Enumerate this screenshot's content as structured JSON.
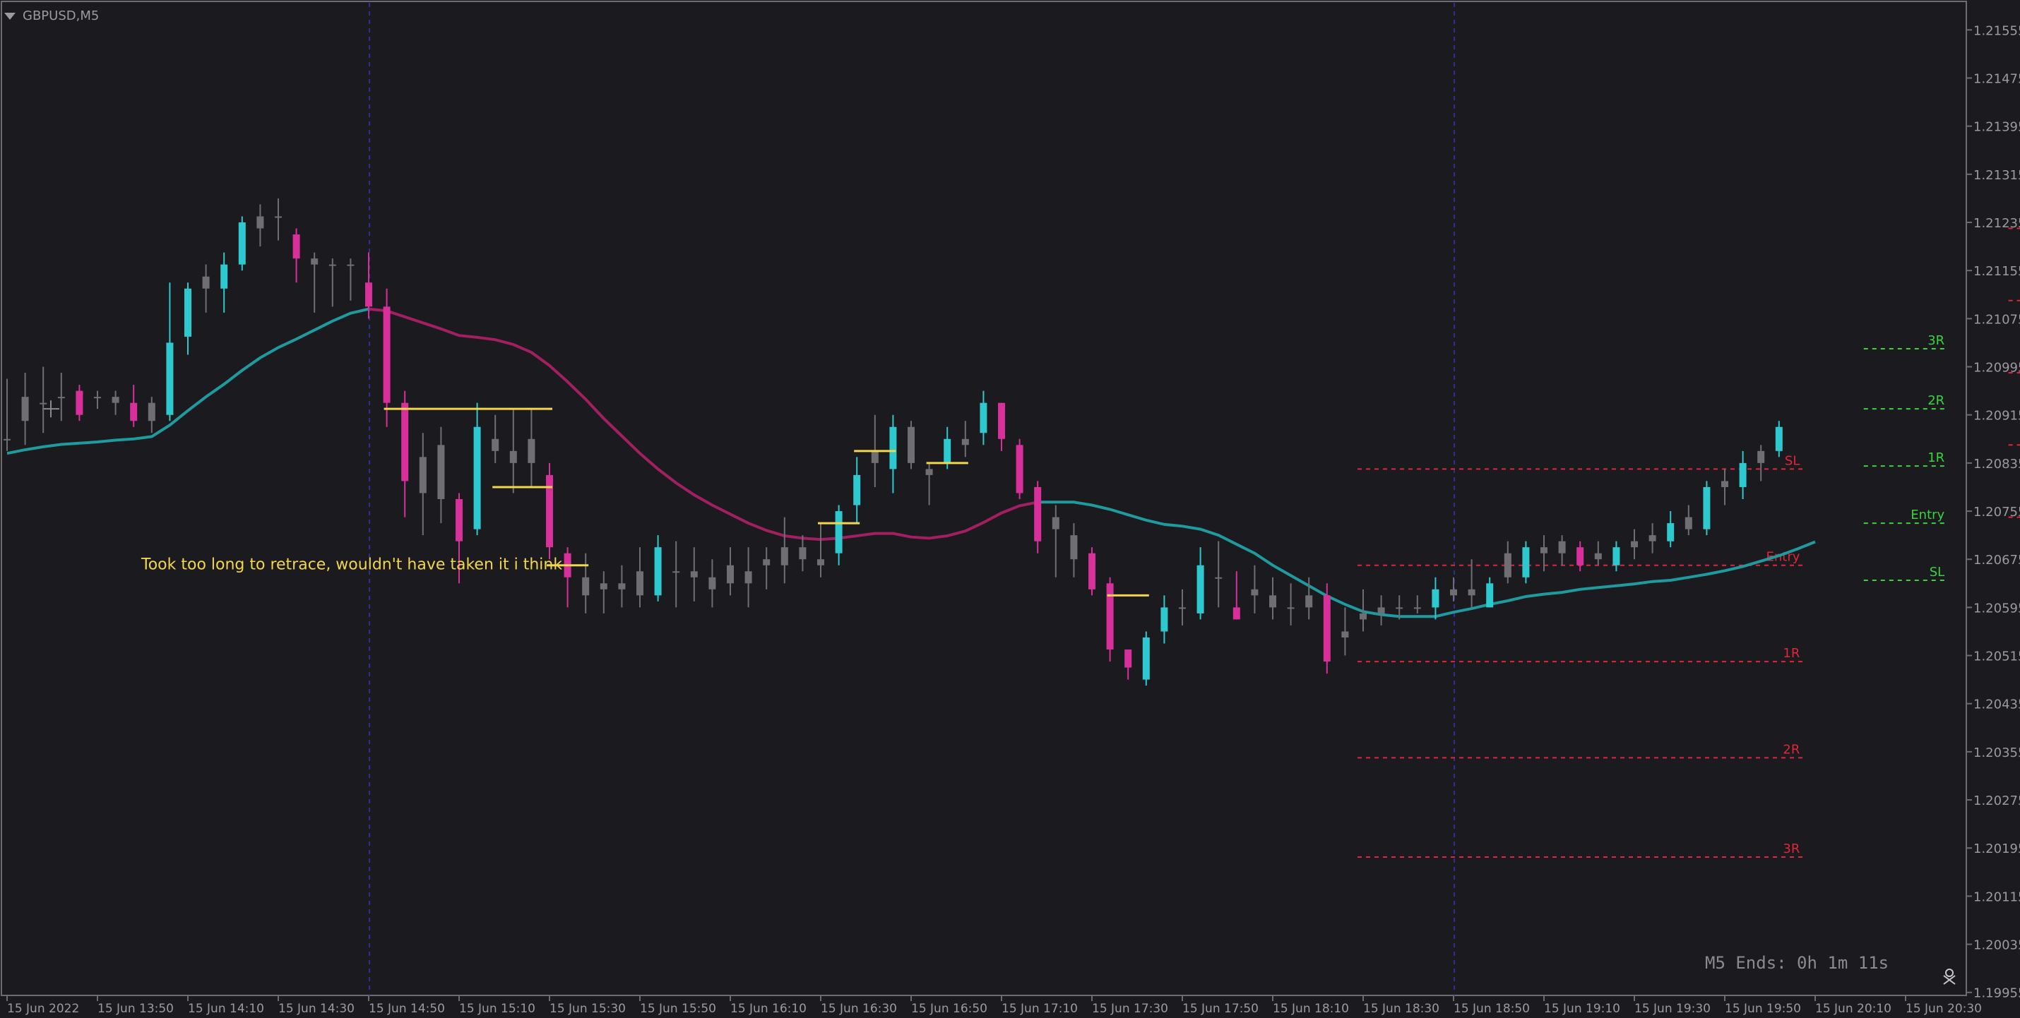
{
  "window": {
    "symbol_label": "GBPUSD,M5",
    "countdown": "M5 Ends: 0h 1m 11s"
  },
  "colors": {
    "background": "#1b1a1f",
    "bull": "#2dc9cf",
    "bear": "#d7309b",
    "neutral": "#6f6f73",
    "ma_up": "#1f9a9e",
    "ma_down": "#a21f61",
    "yellow": "#f2d64b",
    "red_level": "#e0263a",
    "green_level": "#39d33d",
    "annotation": "#f2d64b",
    "axis_text": "#9a9aa0"
  },
  "chart_data": {
    "type": "candlestick",
    "title": "GBPUSD,M5",
    "ylim": [
      1.1995,
      1.216
    ],
    "y_ticks": [
      "1.21555",
      "1.21475",
      "1.21395",
      "1.21315",
      "1.21235",
      "1.21155",
      "1.21075",
      "1.20995",
      "1.20915",
      "1.20835",
      "1.20755",
      "1.20675",
      "1.20595",
      "1.20515",
      "1.20435",
      "1.20355",
      "1.20275",
      "1.20195",
      "1.20115",
      "1.20035",
      "1.19955"
    ],
    "x_ticks": [
      "15 Jun 2022",
      "15 Jun 13:50",
      "15 Jun 14:10",
      "15 Jun 14:30",
      "15 Jun 14:50",
      "15 Jun 15:10",
      "15 Jun 15:30",
      "15 Jun 15:50",
      "15 Jun 16:10",
      "15 Jun 16:30",
      "15 Jun 16:50",
      "15 Jun 17:10",
      "15 Jun 17:30",
      "15 Jun 17:50",
      "15 Jun 18:10",
      "15 Jun 18:30",
      "15 Jun 18:50",
      "15 Jun 19:10",
      "15 Jun 19:30",
      "15 Jun 19:50",
      "15 Jun 20:10",
      "15 Jun 20:30"
    ],
    "session_separators": [
      "15 Jun 14:50",
      "15 Jun 18:50"
    ],
    "candles": [
      {
        "o": 1.20875,
        "h": 1.20975,
        "l": 1.20855,
        "c": 1.20875,
        "t": "neutral"
      },
      {
        "o": 1.20905,
        "h": 1.20985,
        "l": 1.20865,
        "c": 1.20945,
        "t": "neutral"
      },
      {
        "o": 1.20935,
        "h": 1.20995,
        "l": 1.20885,
        "c": 1.20935,
        "t": "neutral"
      },
      {
        "o": 1.20945,
        "h": 1.20985,
        "l": 1.20905,
        "c": 1.20945,
        "t": "neutral"
      },
      {
        "o": 1.20955,
        "h": 1.20965,
        "l": 1.20905,
        "c": 1.20915,
        "t": "bear"
      },
      {
        "o": 1.20945,
        "h": 1.20955,
        "l": 1.20925,
        "c": 1.20945,
        "t": "neutral"
      },
      {
        "o": 1.20945,
        "h": 1.20955,
        "l": 1.20915,
        "c": 1.20935,
        "t": "neutral"
      },
      {
        "o": 1.20935,
        "h": 1.20965,
        "l": 1.20895,
        "c": 1.20905,
        "t": "bear"
      },
      {
        "o": 1.20905,
        "h": 1.20945,
        "l": 1.20885,
        "c": 1.20935,
        "t": "neutral"
      },
      {
        "o": 1.20915,
        "h": 1.21135,
        "l": 1.20905,
        "c": 1.21035,
        "t": "bull"
      },
      {
        "o": 1.21045,
        "h": 1.21135,
        "l": 1.21015,
        "c": 1.21125,
        "t": "bull"
      },
      {
        "o": 1.21125,
        "h": 1.21165,
        "l": 1.21085,
        "c": 1.21145,
        "t": "neutral"
      },
      {
        "o": 1.21125,
        "h": 1.21185,
        "l": 1.21085,
        "c": 1.21165,
        "t": "bull"
      },
      {
        "o": 1.21165,
        "h": 1.21245,
        "l": 1.21155,
        "c": 1.21235,
        "t": "bull"
      },
      {
        "o": 1.21225,
        "h": 1.21265,
        "l": 1.21195,
        "c": 1.21245,
        "t": "neutral"
      },
      {
        "o": 1.21245,
        "h": 1.21275,
        "l": 1.21205,
        "c": 1.21245,
        "t": "neutral"
      },
      {
        "o": 1.21215,
        "h": 1.21225,
        "l": 1.21135,
        "c": 1.21175,
        "t": "bear"
      },
      {
        "o": 1.21175,
        "h": 1.21185,
        "l": 1.21085,
        "c": 1.21165,
        "t": "neutral"
      },
      {
        "o": 1.21165,
        "h": 1.21175,
        "l": 1.21095,
        "c": 1.21165,
        "t": "neutral"
      },
      {
        "o": 1.21165,
        "h": 1.21175,
        "l": 1.21105,
        "c": 1.21165,
        "t": "neutral"
      },
      {
        "o": 1.21135,
        "h": 1.21185,
        "l": 1.21075,
        "c": 1.21095,
        "t": "bear"
      },
      {
        "o": 1.21095,
        "h": 1.21125,
        "l": 1.20895,
        "c": 1.20935,
        "t": "bear"
      },
      {
        "o": 1.20935,
        "h": 1.20955,
        "l": 1.20745,
        "c": 1.20805,
        "t": "bear"
      },
      {
        "o": 1.20845,
        "h": 1.20885,
        "l": 1.20715,
        "c": 1.20785,
        "t": "neutral"
      },
      {
        "o": 1.20865,
        "h": 1.20895,
        "l": 1.20735,
        "c": 1.20775,
        "t": "neutral"
      },
      {
        "o": 1.20775,
        "h": 1.20785,
        "l": 1.20635,
        "c": 1.20705,
        "t": "bear"
      },
      {
        "o": 1.20725,
        "h": 1.20935,
        "l": 1.20715,
        "c": 1.20895,
        "t": "bull"
      },
      {
        "o": 1.20875,
        "h": 1.20915,
        "l": 1.20835,
        "c": 1.20855,
        "t": "neutral"
      },
      {
        "o": 1.20855,
        "h": 1.20925,
        "l": 1.20785,
        "c": 1.20835,
        "t": "neutral"
      },
      {
        "o": 1.20875,
        "h": 1.20925,
        "l": 1.20795,
        "c": 1.20835,
        "t": "neutral"
      },
      {
        "o": 1.20815,
        "h": 1.20835,
        "l": 1.20675,
        "c": 1.20695,
        "t": "bear"
      },
      {
        "o": 1.20685,
        "h": 1.20695,
        "l": 1.20595,
        "c": 1.20645,
        "t": "bear"
      },
      {
        "o": 1.20645,
        "h": 1.20685,
        "l": 1.20585,
        "c": 1.20615,
        "t": "neutral"
      },
      {
        "o": 1.20635,
        "h": 1.20655,
        "l": 1.20585,
        "c": 1.20625,
        "t": "neutral"
      },
      {
        "o": 1.20625,
        "h": 1.20665,
        "l": 1.20595,
        "c": 1.20635,
        "t": "neutral"
      },
      {
        "o": 1.20615,
        "h": 1.20695,
        "l": 1.20595,
        "c": 1.20655,
        "t": "neutral"
      },
      {
        "o": 1.20615,
        "h": 1.20715,
        "l": 1.20605,
        "c": 1.20695,
        "t": "bull"
      },
      {
        "o": 1.20655,
        "h": 1.20705,
        "l": 1.20595,
        "c": 1.20655,
        "t": "neutral"
      },
      {
        "o": 1.20655,
        "h": 1.20695,
        "l": 1.20605,
        "c": 1.20645,
        "t": "neutral"
      },
      {
        "o": 1.20645,
        "h": 1.20675,
        "l": 1.20595,
        "c": 1.20625,
        "t": "neutral"
      },
      {
        "o": 1.20635,
        "h": 1.20695,
        "l": 1.20615,
        "c": 1.20665,
        "t": "neutral"
      },
      {
        "o": 1.20655,
        "h": 1.20695,
        "l": 1.20595,
        "c": 1.20635,
        "t": "neutral"
      },
      {
        "o": 1.20665,
        "h": 1.20695,
        "l": 1.20625,
        "c": 1.20675,
        "t": "neutral"
      },
      {
        "o": 1.20665,
        "h": 1.20745,
        "l": 1.20635,
        "c": 1.20695,
        "t": "neutral"
      },
      {
        "o": 1.20675,
        "h": 1.20715,
        "l": 1.20655,
        "c": 1.20695,
        "t": "neutral"
      },
      {
        "o": 1.20675,
        "h": 1.20735,
        "l": 1.20645,
        "c": 1.20665,
        "t": "neutral"
      },
      {
        "o": 1.20685,
        "h": 1.20765,
        "l": 1.20665,
        "c": 1.20755,
        "t": "bull"
      },
      {
        "o": 1.20765,
        "h": 1.20845,
        "l": 1.20735,
        "c": 1.20815,
        "t": "bull"
      },
      {
        "o": 1.20835,
        "h": 1.20915,
        "l": 1.20795,
        "c": 1.20855,
        "t": "neutral"
      },
      {
        "o": 1.20825,
        "h": 1.20915,
        "l": 1.20785,
        "c": 1.20895,
        "t": "bull"
      },
      {
        "o": 1.20895,
        "h": 1.20905,
        "l": 1.20825,
        "c": 1.20835,
        "t": "neutral"
      },
      {
        "o": 1.20815,
        "h": 1.20835,
        "l": 1.20765,
        "c": 1.20825,
        "t": "neutral"
      },
      {
        "o": 1.20835,
        "h": 1.20895,
        "l": 1.20825,
        "c": 1.20875,
        "t": "bull"
      },
      {
        "o": 1.20865,
        "h": 1.20905,
        "l": 1.20845,
        "c": 1.20875,
        "t": "neutral"
      },
      {
        "o": 1.20885,
        "h": 1.20955,
        "l": 1.20865,
        "c": 1.20935,
        "t": "bull"
      },
      {
        "o": 1.20935,
        "h": 1.20935,
        "l": 1.20855,
        "c": 1.20875,
        "t": "bear"
      },
      {
        "o": 1.20865,
        "h": 1.20875,
        "l": 1.20775,
        "c": 1.20785,
        "t": "bear"
      },
      {
        "o": 1.20795,
        "h": 1.20805,
        "l": 1.20685,
        "c": 1.20705,
        "t": "bear"
      },
      {
        "o": 1.20745,
        "h": 1.20765,
        "l": 1.20645,
        "c": 1.20725,
        "t": "neutral"
      },
      {
        "o": 1.20715,
        "h": 1.20735,
        "l": 1.20645,
        "c": 1.20675,
        "t": "neutral"
      },
      {
        "o": 1.20685,
        "h": 1.20695,
        "l": 1.20615,
        "c": 1.20625,
        "t": "bear"
      },
      {
        "o": 1.20635,
        "h": 1.20645,
        "l": 1.20505,
        "c": 1.20525,
        "t": "bear"
      },
      {
        "o": 1.20525,
        "h": 1.20525,
        "l": 1.20475,
        "c": 1.20495,
        "t": "bear"
      },
      {
        "o": 1.20475,
        "h": 1.20555,
        "l": 1.20465,
        "c": 1.20545,
        "t": "bull"
      },
      {
        "o": 1.20555,
        "h": 1.20615,
        "l": 1.20535,
        "c": 1.20595,
        "t": "bull"
      },
      {
        "o": 1.20595,
        "h": 1.20625,
        "l": 1.20565,
        "c": 1.20595,
        "t": "neutral"
      },
      {
        "o": 1.20585,
        "h": 1.20695,
        "l": 1.20575,
        "c": 1.20665,
        "t": "bull"
      },
      {
        "o": 1.20645,
        "h": 1.20705,
        "l": 1.20595,
        "c": 1.20645,
        "t": "neutral"
      },
      {
        "o": 1.20595,
        "h": 1.20655,
        "l": 1.20575,
        "c": 1.20575,
        "t": "bear"
      },
      {
        "o": 1.20625,
        "h": 1.20665,
        "l": 1.20585,
        "c": 1.20615,
        "t": "neutral"
      },
      {
        "o": 1.20615,
        "h": 1.20645,
        "l": 1.20575,
        "c": 1.20595,
        "t": "neutral"
      },
      {
        "o": 1.20595,
        "h": 1.20635,
        "l": 1.20565,
        "c": 1.20595,
        "t": "neutral"
      },
      {
        "o": 1.20595,
        "h": 1.20645,
        "l": 1.20575,
        "c": 1.20615,
        "t": "neutral"
      },
      {
        "o": 1.20615,
        "h": 1.20635,
        "l": 1.20485,
        "c": 1.20505,
        "t": "bear"
      },
      {
        "o": 1.20545,
        "h": 1.20595,
        "l": 1.20515,
        "c": 1.20555,
        "t": "neutral"
      },
      {
        "o": 1.20575,
        "h": 1.20625,
        "l": 1.20555,
        "c": 1.20585,
        "t": "neutral"
      },
      {
        "o": 1.20585,
        "h": 1.20615,
        "l": 1.20565,
        "c": 1.20595,
        "t": "neutral"
      },
      {
        "o": 1.20595,
        "h": 1.20615,
        "l": 1.20575,
        "c": 1.20595,
        "t": "neutral"
      },
      {
        "o": 1.20595,
        "h": 1.20615,
        "l": 1.20585,
        "c": 1.20595,
        "t": "neutral"
      },
      {
        "o": 1.20595,
        "h": 1.20645,
        "l": 1.20575,
        "c": 1.20625,
        "t": "bull"
      },
      {
        "o": 1.20615,
        "h": 1.20645,
        "l": 1.20605,
        "c": 1.20625,
        "t": "neutral"
      },
      {
        "o": 1.20615,
        "h": 1.20675,
        "l": 1.20595,
        "c": 1.20625,
        "t": "neutral"
      },
      {
        "o": 1.20595,
        "h": 1.20645,
        "l": 1.20595,
        "c": 1.20635,
        "t": "bull"
      },
      {
        "o": 1.20645,
        "h": 1.20705,
        "l": 1.20635,
        "c": 1.20685,
        "t": "neutral"
      },
      {
        "o": 1.20645,
        "h": 1.20705,
        "l": 1.20635,
        "c": 1.20695,
        "t": "bull"
      },
      {
        "o": 1.20695,
        "h": 1.20715,
        "l": 1.20655,
        "c": 1.20685,
        "t": "neutral"
      },
      {
        "o": 1.20685,
        "h": 1.20715,
        "l": 1.20665,
        "c": 1.20705,
        "t": "neutral"
      },
      {
        "o": 1.20695,
        "h": 1.20705,
        "l": 1.20655,
        "c": 1.20665,
        "t": "bear"
      },
      {
        "o": 1.20675,
        "h": 1.20705,
        "l": 1.20665,
        "c": 1.20685,
        "t": "neutral"
      },
      {
        "o": 1.20665,
        "h": 1.20705,
        "l": 1.20655,
        "c": 1.20695,
        "t": "bull"
      },
      {
        "o": 1.20695,
        "h": 1.20725,
        "l": 1.20675,
        "c": 1.20705,
        "t": "neutral"
      },
      {
        "o": 1.20705,
        "h": 1.20735,
        "l": 1.20685,
        "c": 1.20715,
        "t": "neutral"
      },
      {
        "o": 1.20705,
        "h": 1.20755,
        "l": 1.20695,
        "c": 1.20735,
        "t": "bull"
      },
      {
        "o": 1.20725,
        "h": 1.20765,
        "l": 1.20715,
        "c": 1.20745,
        "t": "neutral"
      },
      {
        "o": 1.20725,
        "h": 1.20805,
        "l": 1.20715,
        "c": 1.20795,
        "t": "bull"
      },
      {
        "o": 1.20795,
        "h": 1.20825,
        "l": 1.20765,
        "c": 1.20805,
        "t": "neutral"
      },
      {
        "o": 1.20795,
        "h": 1.20855,
        "l": 1.20775,
        "c": 1.20835,
        "t": "bull"
      },
      {
        "o": 1.20835,
        "h": 1.20865,
        "l": 1.20805,
        "c": 1.20855,
        "t": "neutral"
      },
      {
        "o": 1.20855,
        "h": 1.20905,
        "l": 1.20845,
        "c": 1.20895,
        "t": "bull"
      }
    ],
    "moving_average": [
      1.20851,
      1.20857,
      1.20862,
      1.20866,
      1.20868,
      1.2087,
      1.20873,
      1.20875,
      1.20879,
      1.20898,
      1.20922,
      1.20945,
      1.20966,
      1.20989,
      1.2101,
      1.21027,
      1.21041,
      1.21056,
      1.21071,
      1.21084,
      1.21091,
      1.21088,
      1.21078,
      1.21068,
      1.21058,
      1.21047,
      1.21044,
      1.2104,
      1.21032,
      1.21019,
      1.20997,
      1.2097,
      1.20941,
      1.20909,
      1.2088,
      1.20851,
      1.20825,
      1.20802,
      1.20782,
      1.20765,
      1.2075,
      1.20735,
      1.20723,
      1.20714,
      1.2071,
      1.20708,
      1.2071,
      1.20714,
      1.20718,
      1.20718,
      1.20712,
      1.2071,
      1.20714,
      1.20722,
      1.20736,
      1.20752,
      1.20764,
      1.2077,
      1.2077,
      1.2077,
      1.20765,
      1.20758,
      1.20749,
      1.2074,
      1.20733,
      1.2073,
      1.20725,
      1.20715,
      1.207,
      1.20685,
      1.20665,
      1.20648,
      1.20631,
      1.20614,
      1.206,
      1.20588,
      1.20583,
      1.2058,
      1.2058,
      1.2058,
      1.20587,
      1.20593,
      1.206,
      1.20606,
      1.20613,
      1.20617,
      1.2062,
      1.20625,
      1.20628,
      1.20631,
      1.20634,
      1.20638,
      1.2064,
      1.20645,
      1.2065,
      1.20656,
      1.20663,
      1.20672,
      1.20681,
      1.20692,
      1.20704
    ],
    "ma_color_switch_index": 20,
    "ma_color_switch_back_index": 57,
    "trade_setups": [
      {
        "direction": "short",
        "from_index": 75,
        "to_index": 99,
        "levels": [
          {
            "label": "SL",
            "price": 1.20825,
            "color": "red"
          },
          {
            "label": "Entry",
            "price": 1.20665,
            "color": "red"
          },
          {
            "label": "1R",
            "price": 1.20505,
            "color": "red"
          },
          {
            "label": "2R",
            "price": 1.20345,
            "color": "red"
          },
          {
            "label": "3R",
            "price": 1.2018,
            "color": "red"
          }
        ]
      },
      {
        "direction": "long",
        "from_index": 103,
        "to_index": 107,
        "levels": [
          {
            "label": "3R",
            "price": 1.21025,
            "color": "green"
          },
          {
            "label": "2R",
            "price": 1.20925,
            "color": "green"
          },
          {
            "label": "1R",
            "price": 1.2083,
            "color": "green"
          },
          {
            "label": "Entry",
            "price": 1.20735,
            "color": "green"
          },
          {
            "label": "SL",
            "price": 1.2064,
            "color": "green"
          }
        ]
      },
      {
        "direction": "short",
        "from_index": 111,
        "to_index": 135,
        "levels": [
          {
            "label": "3R",
            "price": 1.21225,
            "color": "red"
          },
          {
            "label": "2R",
            "price": 1.21105,
            "color": "red"
          },
          {
            "label": "1R",
            "price": 1.20985,
            "color": "red"
          },
          {
            "label": "Entry",
            "price": 1.20865,
            "color": "red"
          },
          {
            "label": "SL",
            "price": 1.20745,
            "color": "red"
          }
        ]
      }
    ],
    "yellow_segments": [
      {
        "from": 21,
        "to": 30,
        "price": 1.20925
      },
      {
        "from": 27,
        "to": 30,
        "price": 1.20795
      },
      {
        "from": 30,
        "to": 32,
        "price": 1.20665
      },
      {
        "from": 45,
        "to": 47,
        "price": 1.20735
      },
      {
        "from": 47,
        "to": 49,
        "price": 1.20855
      },
      {
        "from": 51,
        "to": 53,
        "price": 1.20835
      },
      {
        "from": 61,
        "to": 63,
        "price": 1.20615
      }
    ],
    "annotation": {
      "text": "Took too long to retrace, wouldn't have taken it i think",
      "price": 1.20665
    }
  }
}
